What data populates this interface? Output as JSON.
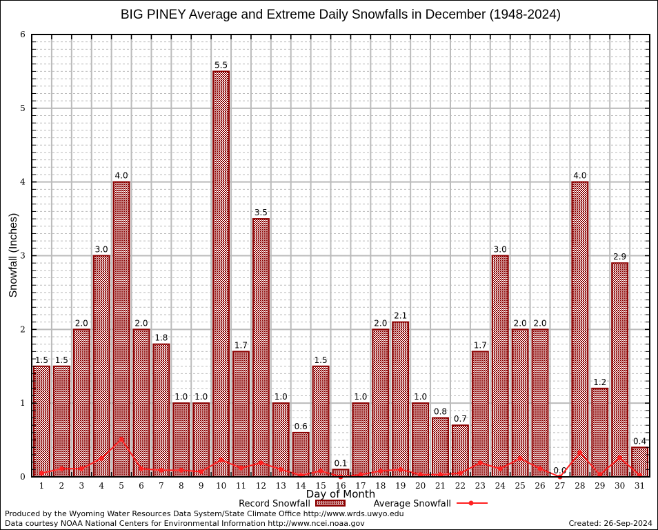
{
  "chart_data": {
    "type": "bar",
    "title": "BIG PINEY Average and Extreme Daily Snowfalls in December (1948-2024)",
    "xlabel": "Day of Month",
    "ylabel": "Snowfall (Inches)",
    "ylim": [
      0,
      6
    ],
    "yticks": [
      "0",
      "1",
      "2",
      "3",
      "4",
      "5",
      "6"
    ],
    "grid": true,
    "categories": [
      "1",
      "2",
      "3",
      "4",
      "5",
      "6",
      "7",
      "8",
      "9",
      "10",
      "11",
      "12",
      "13",
      "14",
      "15",
      "16",
      "17",
      "18",
      "19",
      "20",
      "21",
      "22",
      "23",
      "24",
      "25",
      "26",
      "27",
      "28",
      "29",
      "30",
      "31"
    ],
    "series": [
      {
        "name": "Record Snowfall",
        "kind": "bar",
        "color": "#8b0000",
        "values": [
          1.5,
          1.5,
          2.0,
          3.0,
          4.0,
          2.0,
          1.8,
          1.0,
          1.0,
          5.5,
          1.7,
          3.5,
          1.0,
          0.6,
          1.5,
          0.1,
          1.0,
          2.0,
          2.1,
          1.0,
          0.8,
          0.7,
          1.7,
          3.0,
          2.0,
          2.0,
          0.0,
          4.0,
          1.2,
          2.9,
          0.4
        ],
        "labels": [
          "1.5",
          "1.5",
          "2.0",
          "3.0",
          "4.0",
          "2.0",
          "1.8",
          "1.0",
          "1.0",
          "5.5",
          "1.7",
          "3.5",
          "1.0",
          "0.6",
          "1.5",
          "0.1",
          "1.0",
          "2.0",
          "2.1",
          "1.0",
          "0.8",
          "0.7",
          "1.7",
          "3.0",
          "2.0",
          "2.0",
          "0.0",
          "4.0",
          "1.2",
          "2.9",
          "0.4"
        ]
      },
      {
        "name": "Average Snowfall",
        "kind": "line",
        "color": "#ff2020",
        "values": [
          0.05,
          0.11,
          0.11,
          0.25,
          0.51,
          0.11,
          0.09,
          0.09,
          0.07,
          0.23,
          0.12,
          0.19,
          0.1,
          0.02,
          0.08,
          0.0,
          0.03,
          0.08,
          0.1,
          0.03,
          0.03,
          0.05,
          0.19,
          0.11,
          0.25,
          0.11,
          0.0,
          0.33,
          0.03,
          0.26,
          0.02
        ]
      }
    ],
    "legend": {
      "position": "bottom-center",
      "entries": [
        "Record Snowfall",
        "Average Snowfall"
      ]
    }
  },
  "footer": {
    "produced_by": "Produced by the Wyoming Water Resources Data System/State Climate Office http://www.wrds.uwyo.edu",
    "data_courtesy": "Data courtesy NOAA National Centers for Environmental Information http://www.ncei.noaa.gov",
    "created": "Created:  26-Sep-2024"
  }
}
